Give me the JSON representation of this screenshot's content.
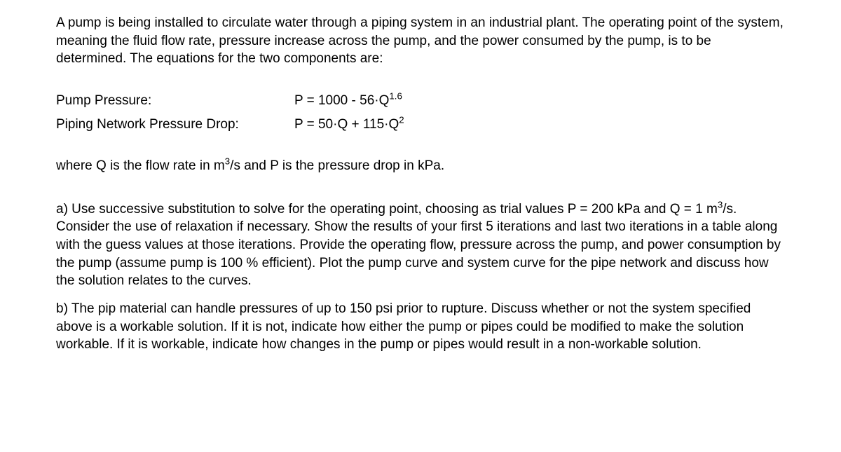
{
  "intro": "A pump is being installed to circulate water through a piping system in an industrial plant.  The operating point of the system, meaning the fluid flow rate, pressure increase across the pump, and the power consumed by the pump, is to be determined.  The equations for the two components are:",
  "equations": {
    "pump": {
      "label": "Pump Pressure:",
      "lhs": "P = 1000 - 56·Q",
      "exp": "1.6"
    },
    "piping": {
      "label": "Piping Network Pressure Drop:",
      "prefix": "P = 50·Q + 115·Q",
      "exp": "2"
    }
  },
  "where_pre": "where Q is the flow rate in m",
  "where_exp": "3",
  "where_post": "/s and P is the pressure drop in kPa.",
  "part_a_pre": "a)  Use successive substitution to solve for the operating point, choosing as trial values P = 200 kPa and Q = 1 m",
  "part_a_exp": "3",
  "part_a_post": "/s.  Consider the use of relaxation if necessary.   Show the results of your first 5 iterations and last two iterations in a table along with the guess values at those iterations.  Provide the operating flow, pressure across the pump, and power consumption by the pump (assume pump is 100 % efficient).  Plot the pump curve and system curve for the pipe network and discuss how the solution relates to the curves.",
  "part_b": "b) The pip material can handle pressures of up to 150 psi prior to rupture.  Discuss whether or not the system specified above is a workable solution.   If it is not, indicate how either the pump or pipes could be modified to make the solution workable.  If it is workable, indicate how changes in the pump or pipes would result in a non-workable solution."
}
